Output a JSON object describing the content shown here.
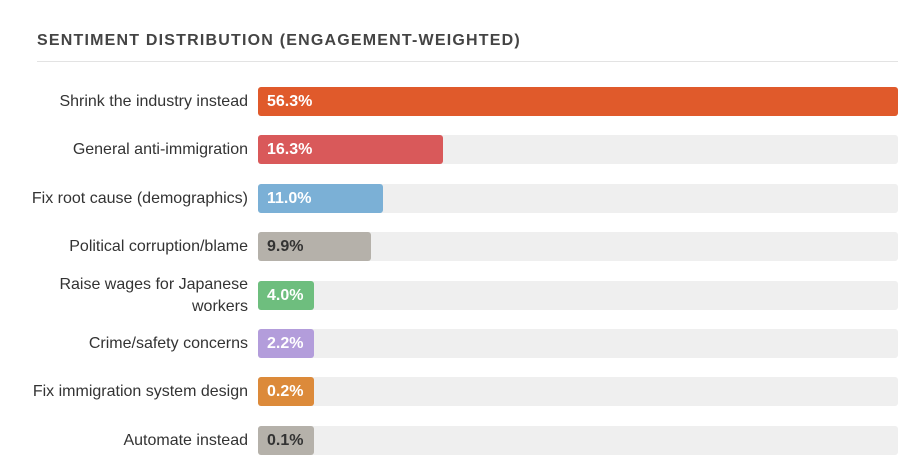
{
  "chart_data": {
    "type": "bar",
    "orientation": "horizontal",
    "title": "SENTIMENT DISTRIBUTION (ENGAGEMENT-WEIGHTED)",
    "xlim": [
      0,
      56.3
    ],
    "grid": false,
    "bars": [
      {
        "label": "Shrink the industry instead",
        "value": 56.3,
        "value_label": "56.3%",
        "color": "#e05a2b",
        "text_color": "#ffffff"
      },
      {
        "label": "General anti-immigration",
        "value": 16.3,
        "value_label": "16.3%",
        "color": "#d9595a",
        "text_color": "#ffffff"
      },
      {
        "label": "Fix root cause (demographics)",
        "value": 11.0,
        "value_label": "11.0%",
        "color": "#7bb0d6",
        "text_color": "#ffffff"
      },
      {
        "label": "Political corruption/blame",
        "value": 9.9,
        "value_label": "9.9%",
        "color": "#b5b1aa",
        "text_color": "#333333"
      },
      {
        "label": "Raise wages for Japanese workers",
        "value": 4.0,
        "value_label": "4.0%",
        "color": "#6ebe7e",
        "text_color": "#ffffff"
      },
      {
        "label": "Crime/safety concerns",
        "value": 2.2,
        "value_label": "2.2%",
        "color": "#b39ddb",
        "text_color": "#ffffff"
      },
      {
        "label": "Fix immigration system design",
        "value": 0.2,
        "value_label": "0.2%",
        "color": "#dc8a3a",
        "text_color": "#ffffff"
      },
      {
        "label": "Automate instead",
        "value": 0.1,
        "value_label": "0.1%",
        "color": "#b5b1aa",
        "text_color": "#333333"
      }
    ]
  }
}
